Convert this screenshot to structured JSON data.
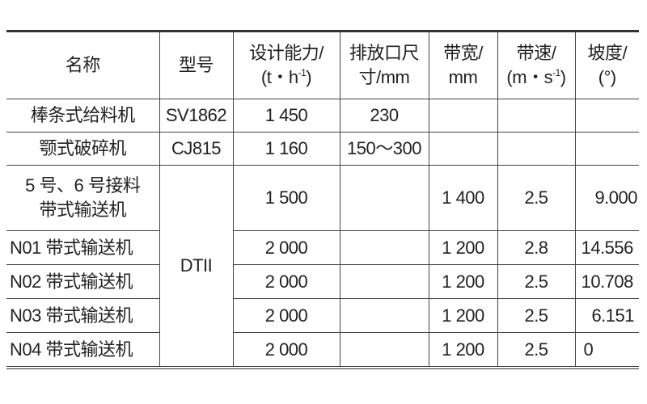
{
  "headers": {
    "name": "名称",
    "model": "型号",
    "capacity": [
      "设计能力/",
      "(t・h",
      "-1",
      ")"
    ],
    "outlet": [
      "排放口尺",
      "寸/mm"
    ],
    "width": [
      "带宽/",
      "mm"
    ],
    "speed": [
      "带速/",
      "(m・s",
      "-1",
      ")"
    ],
    "slope": [
      "坡度/",
      "(°)"
    ]
  },
  "rows": [
    {
      "name": "棒条式给料机",
      "model": "SV1862",
      "capacity": "1 450",
      "outlet": "230",
      "width": "",
      "speed": "",
      "slope": ""
    },
    {
      "name": "颚式破碎机",
      "model": "CJ815",
      "capacity": "1 160",
      "outlet": "150～300",
      "width": "",
      "speed": "",
      "slope": ""
    },
    {
      "name": [
        "5 号、6 号接料",
        "带式输送机"
      ],
      "model": "DTII",
      "capacity": "1 500",
      "outlet": "",
      "width": "1 400",
      "speed": "2.5",
      "slope": "9.000"
    },
    {
      "name": "N01 带式输送机",
      "capacity": "2 000",
      "outlet": "",
      "width": "1 200",
      "speed": "2.8",
      "slope": "14.556"
    },
    {
      "name": "N02 带式输送机",
      "capacity": "2 000",
      "outlet": "",
      "width": "1 200",
      "speed": "2.5",
      "slope": "10.708"
    },
    {
      "name": "N03 带式输送机",
      "capacity": "2 000",
      "outlet": "",
      "width": "1 200",
      "speed": "2.5",
      "slope": "6.151"
    },
    {
      "name": "N04 带式输送机",
      "capacity": "2 000",
      "outlet": "",
      "width": "1 200",
      "speed": "2.5",
      "slope": "0"
    }
  ]
}
